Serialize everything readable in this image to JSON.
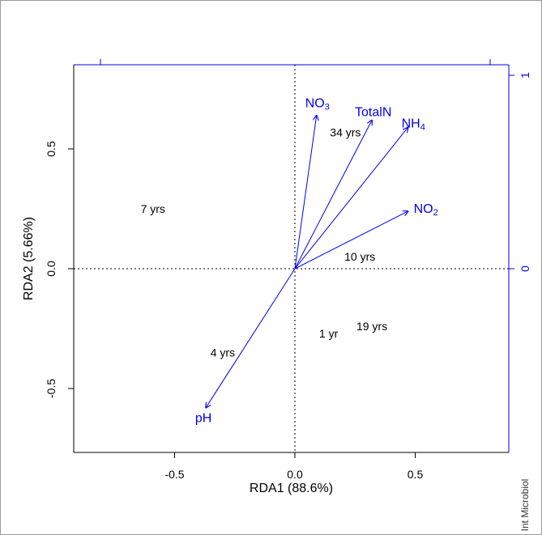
{
  "chart_data": {
    "type": "scatter",
    "subtype": "rda-biplot",
    "xlabel": "RDA1 (88.6%)",
    "ylabel": "RDA2 (5.66%)",
    "xlim": [
      -0.9,
      0.9
    ],
    "ylim": [
      -0.78,
      0.85
    ],
    "x_ticks": [
      -0.5,
      0.0,
      0.5
    ],
    "x_tick_labels": [
      "-0.5",
      "0.0",
      "0.5"
    ],
    "y_ticks": [
      -0.5,
      0.0,
      0.5
    ],
    "y_tick_labels": [
      "-0.5",
      "0.0",
      "0.5"
    ],
    "secondary_axis_ticks": [
      "1",
      "0"
    ],
    "grid": false,
    "zero_lines": true,
    "site_color": "#000000",
    "vector_color": "#0000ee",
    "sites": [
      {
        "label": "34 yrs",
        "x": 0.21,
        "y": 0.57
      },
      {
        "label": "7 yrs",
        "x": -0.59,
        "y": 0.25
      },
      {
        "label": "10 yrs",
        "x": 0.27,
        "y": 0.05
      },
      {
        "label": "19 yrs",
        "x": 0.32,
        "y": -0.24
      },
      {
        "label": "1 yr",
        "x": 0.14,
        "y": -0.27
      },
      {
        "label": "4 yrs",
        "x": -0.3,
        "y": -0.35
      }
    ],
    "vectors": [
      {
        "label": "NO3",
        "base": "NO",
        "sub": "3",
        "x": 0.09,
        "y": 0.64
      },
      {
        "label": "TotalN",
        "base": "TotalN",
        "sub": "",
        "x": 0.32,
        "y": 0.62
      },
      {
        "label": "NH4",
        "base": "NH",
        "sub": "4",
        "x": 0.47,
        "y": 0.59
      },
      {
        "label": "NO2",
        "base": "NO",
        "sub": "2",
        "x": 0.47,
        "y": 0.24
      },
      {
        "label": "pH",
        "base": "pH",
        "sub": "",
        "x": -0.37,
        "y": -0.58
      }
    ]
  },
  "credit": "Int Microbiol"
}
